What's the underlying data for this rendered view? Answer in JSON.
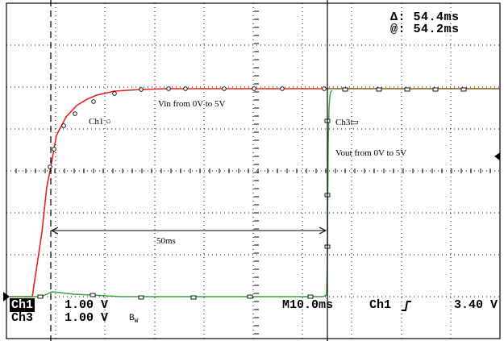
{
  "cursor_readout": {
    "delta_label": "Δ: 54.4ms",
    "at_label": "@: 54.2ms"
  },
  "status_bar": {
    "ch1_label": "Ch1",
    "ch1_scale": "1.00 V",
    "ch3_label": "Ch3",
    "ch3_scale": "1.00 V",
    "bw_label": "B",
    "bw_sub": "W",
    "timebase": "M10.0ms",
    "trigger_source": "Ch1",
    "trigger_slope_icon": "rising-edge-icon",
    "trigger_level": "3.40 V"
  },
  "annotations": {
    "vin_label": "Vin from 0V to 5V",
    "vout_label": "Vout from 0V to 5V",
    "ch1_marker_label": "Ch1",
    "ch3_marker_label": "Ch3",
    "interval_label": "50ms"
  },
  "colors": {
    "ch1_trace": "#e8221c",
    "ch3_trace": "#39a23a",
    "overlap_trace": "#8a5a16",
    "grid": "#000000",
    "background": "#ffffff"
  }
}
